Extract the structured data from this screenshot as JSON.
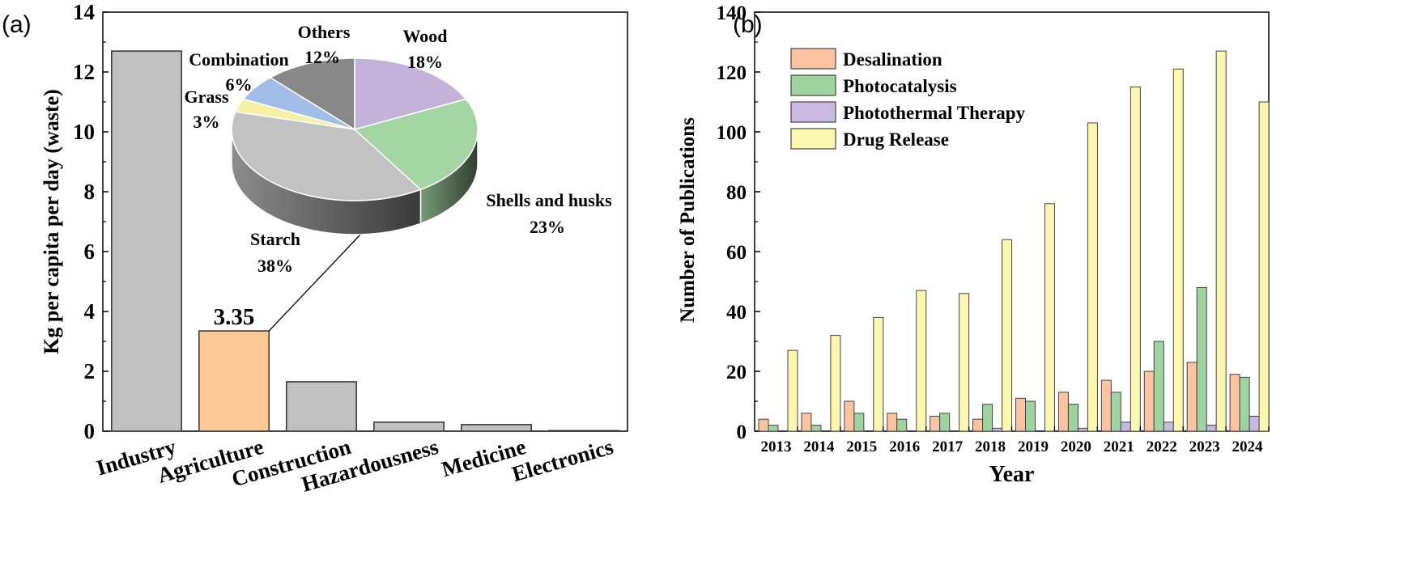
{
  "panel_a_label": "(a)",
  "panel_b_label": "(b)",
  "chart_data": [
    {
      "type": "bar",
      "ylabel": "Kg per capita per day (waste)",
      "xlabel": "",
      "ylim": [
        0,
        14
      ],
      "yticks": [
        0,
        2,
        4,
        6,
        8,
        10,
        12,
        14
      ],
      "categories": [
        "Industry",
        "Agriculture",
        "Construction",
        "Hazardousness",
        "Medicine",
        "Electronics"
      ],
      "values": [
        12.7,
        3.35,
        1.65,
        0.3,
        0.22,
        0.02
      ],
      "colors": [
        "#c0c0c0",
        "#fbc896",
        "#c0c0c0",
        "#c0c0c0",
        "#c0c0c0",
        "#c0c0c0"
      ],
      "annotation": "3.35"
    },
    {
      "type": "pie",
      "title": "",
      "slices": [
        {
          "label": "Wood",
          "value": 18,
          "pct": "18%",
          "color": "#c3b3d9"
        },
        {
          "label": "Shells and husks",
          "value": 23,
          "pct": "23%",
          "color": "#a3d6a3"
        },
        {
          "label": "Starch",
          "value": 38,
          "pct": "38%",
          "color": "#c2c2c2"
        },
        {
          "label": "Grass",
          "value": 3,
          "pct": "3%",
          "color": "#f6f0a5"
        },
        {
          "label": "Combination",
          "value": 6,
          "pct": "6%",
          "color": "#9fbde6"
        },
        {
          "label": "Others",
          "value": 12,
          "pct": "12%",
          "color": "#888888"
        }
      ]
    },
    {
      "type": "bar",
      "xlabel": "Year",
      "ylabel": "Number of Publications",
      "ylim": [
        0,
        140
      ],
      "yticks": [
        0,
        20,
        40,
        60,
        80,
        100,
        120,
        140
      ],
      "categories": [
        "2013",
        "2014",
        "2015",
        "2016",
        "2017",
        "2018",
        "2019",
        "2020",
        "2021",
        "2022",
        "2023",
        "2024"
      ],
      "series": [
        {
          "name": "Desalination",
          "color": "#fbc3a0",
          "values": [
            4,
            6,
            10,
            6,
            5,
            4,
            11,
            13,
            17,
            20,
            23,
            19
          ]
        },
        {
          "name": "Photocatalysis",
          "color": "#9fd3a0",
          "values": [
            2,
            2,
            6,
            4,
            6,
            9,
            10,
            9,
            13,
            30,
            48,
            18
          ]
        },
        {
          "name": "Photothermal Therapy",
          "color": "#c9b8e0",
          "values": [
            0,
            0,
            0,
            0,
            0,
            1,
            0,
            1,
            3,
            3,
            2,
            5
          ]
        },
        {
          "name": "Drug Release",
          "color": "#fbf6b0",
          "values": [
            27,
            32,
            38,
            47,
            46,
            64,
            76,
            103,
            115,
            121,
            127,
            110
          ]
        }
      ]
    }
  ]
}
